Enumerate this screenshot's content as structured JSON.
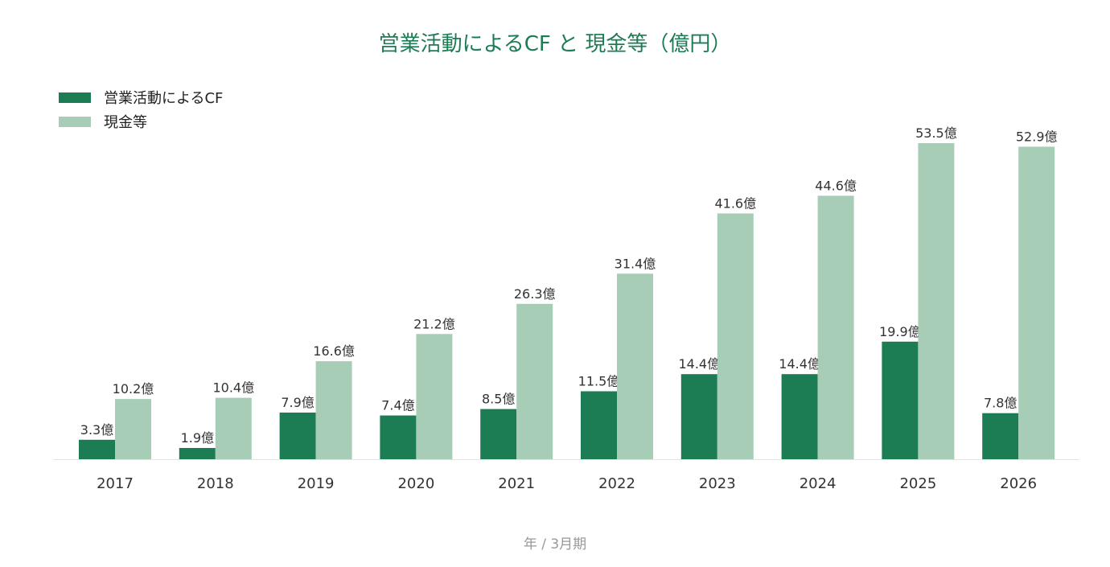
{
  "chart_data": {
    "type": "bar",
    "title": "営業活動によるCF と 現金等（億円）",
    "xlabel": "年 / 3月期",
    "ylabel": "",
    "ylim": [
      0,
      55
    ],
    "categories": [
      "2017",
      "2018",
      "2019",
      "2020",
      "2021",
      "2022",
      "2023",
      "2024",
      "2025",
      "2026"
    ],
    "series": [
      {
        "name": "営業活動によるCF",
        "color": "#1c7c54",
        "values": [
          3.3,
          1.9,
          7.9,
          7.4,
          8.5,
          11.5,
          14.4,
          14.4,
          19.9,
          7.8
        ],
        "labels": [
          "3.3億",
          "1.9億",
          "7.9億",
          "7.4億",
          "8.5億",
          "11.5億",
          "14.4億",
          "14.4億",
          "19.9億",
          "7.8億"
        ]
      },
      {
        "name": "現金等",
        "color": "#a8cdb7",
        "values": [
          10.2,
          10.4,
          16.6,
          21.2,
          26.3,
          31.4,
          41.6,
          44.6,
          53.5,
          52.9
        ],
        "labels": [
          "10.2億",
          "10.4億",
          "16.6億",
          "21.2億",
          "26.3億",
          "31.4億",
          "41.6億",
          "44.6億",
          "53.5億",
          "52.9億"
        ]
      }
    ],
    "legend_position": "top-left",
    "grid": false
  }
}
